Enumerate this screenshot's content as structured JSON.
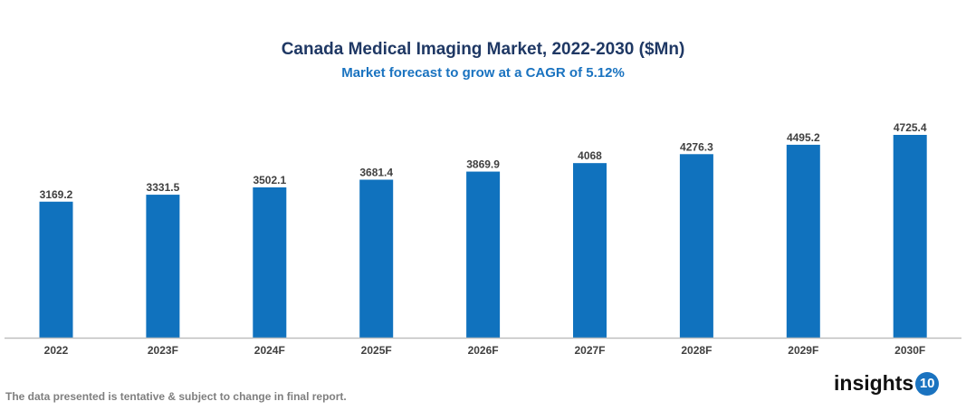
{
  "chart_data": {
    "type": "bar",
    "title": "Canada Medical Imaging Market, 2022-2030 ($Mn)",
    "subtitle": "Market forecast to grow at a CAGR of 5.12%",
    "categories": [
      "2022",
      "2023F",
      "2024F",
      "2025F",
      "2026F",
      "2027F",
      "2028F",
      "2029F",
      "2030F"
    ],
    "values": [
      3169.2,
      3331.5,
      3502.1,
      3681.4,
      3869.9,
      4068,
      4276.3,
      4495.2,
      4725.4
    ],
    "data_labels": [
      "3169.2",
      "3331.5",
      "3502.1",
      "3681.4",
      "3869.9",
      "4068",
      "4276.3",
      "4495.2",
      "4725.4"
    ],
    "xlabel": "",
    "ylabel": "",
    "ylim": [
      0,
      5000
    ],
    "grid": false,
    "bar_color": "#1072be"
  },
  "footnote": "The data presented is tentative & subject to change in final report.",
  "logo": {
    "text": "insights",
    "badge": "10"
  }
}
